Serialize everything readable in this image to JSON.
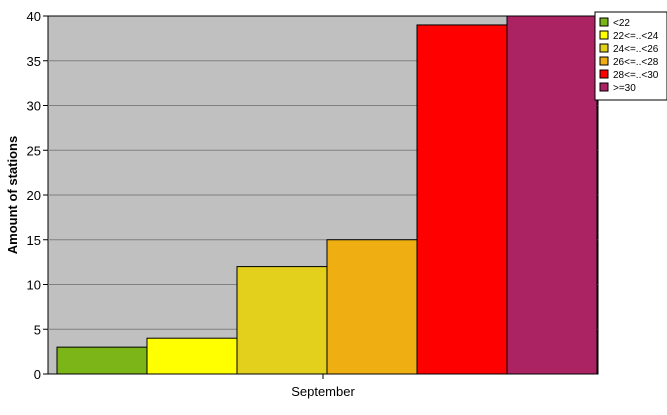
{
  "chart_data": {
    "type": "bar",
    "categories": [
      "September"
    ],
    "series": [
      {
        "name": "<22",
        "values": [
          3
        ],
        "color": "#7cb518"
      },
      {
        "name": "22<=..<24",
        "values": [
          4
        ],
        "color": "#ffff00"
      },
      {
        "name": "24<=..<26",
        "values": [
          12
        ],
        "color": "#e2d01c"
      },
      {
        "name": "26<=..<28",
        "values": [
          15
        ],
        "color": "#efaf12"
      },
      {
        "name": "28<=..<30",
        "values": [
          39
        ],
        "color": "#ff0000"
      },
      {
        "name": ">=30",
        "values": [
          40
        ],
        "color": "#ac2364"
      }
    ],
    "xlabel": "",
    "ylabel": "Amount of stations",
    "ylim": [
      0,
      40
    ],
    "yticks": [
      0,
      5,
      10,
      15,
      20,
      25,
      30,
      35,
      40
    ],
    "grid": true,
    "legend": "top-right",
    "plot_background": "#c0c0c0"
  }
}
